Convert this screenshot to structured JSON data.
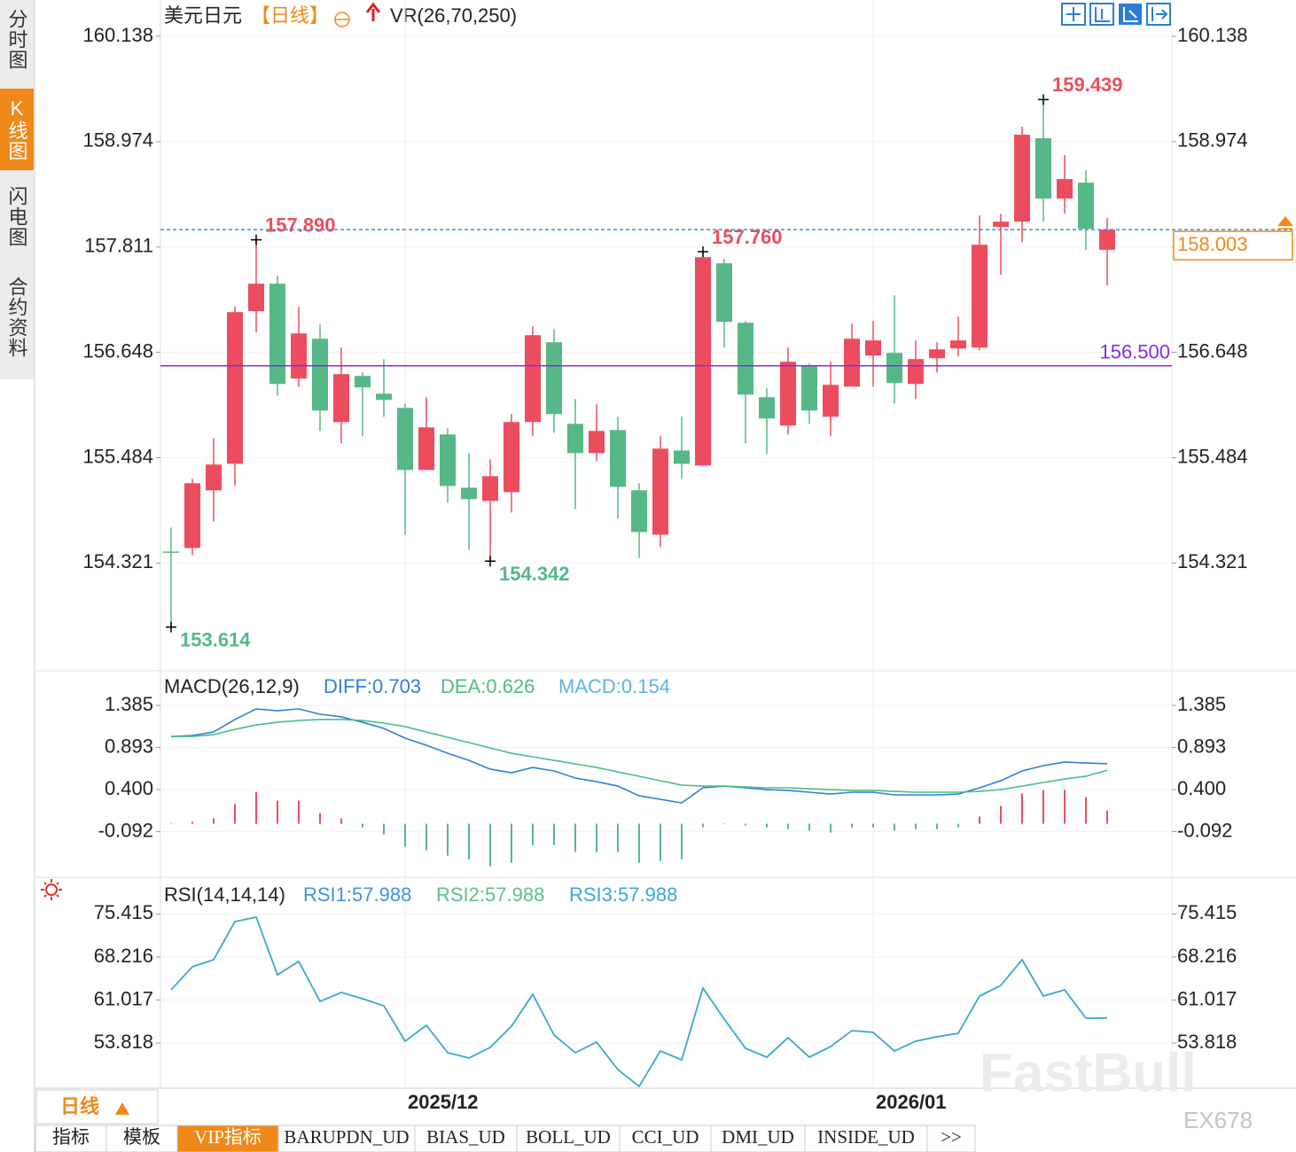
{
  "sidebar_tabs": [
    "分时图",
    "K线图",
    "闪电图",
    "合约资料"
  ],
  "active_sidebar_tab": 1,
  "header": {
    "symbol": "美元日元",
    "period": "【日线】",
    "indicator": "VR(26,70,250)"
  },
  "chart_data": [
    {
      "type": "candlestick",
      "categories": [
        null,
        null,
        null,
        null,
        null,
        null,
        null,
        null,
        null,
        null,
        null,
        "2025/12",
        null,
        null,
        null,
        null,
        null,
        null,
        null,
        null,
        null,
        null,
        null,
        null,
        null,
        null,
        null,
        null,
        null,
        null,
        null,
        null,
        null,
        "2026/01",
        null,
        null,
        null,
        null,
        null,
        null,
        null,
        null,
        null,
        null,
        null
      ],
      "open": [
        154.448,
        154.487,
        155.124,
        155.417,
        157.102,
        157.406,
        156.358,
        156.798,
        155.878,
        156.387,
        156.191,
        156.034,
        155.349,
        155.741,
        155.153,
        155.006,
        155.104,
        155.878,
        156.759,
        155.858,
        155.535,
        155.79,
        155.124,
        154.634,
        155.564,
        155.398,
        157.631,
        156.974,
        156.152,
        155.838,
        156.495,
        155.936,
        156.269,
        156.612,
        156.642,
        156.299,
        156.583,
        156.69,
        156.7,
        158.032,
        158.091,
        159.012,
        158.346,
        158.522,
        157.78
      ],
      "high": [
        154.712,
        155.251,
        155.701,
        157.151,
        157.89,
        157.494,
        157.151,
        156.955,
        156.7,
        156.426,
        156.573,
        156.083,
        156.152,
        155.809,
        155.535,
        155.466,
        155.966,
        156.935,
        156.906,
        156.132,
        156.074,
        155.936,
        155.202,
        155.721,
        155.936,
        157.76,
        157.68,
        156.994,
        156.25,
        156.7,
        156.524,
        156.544,
        156.965,
        156.994,
        157.278,
        156.779,
        156.759,
        157.043,
        158.16,
        158.179,
        159.139,
        159.439,
        158.826,
        158.659,
        158.13
      ],
      "low": [
        153.614,
        154.408,
        154.781,
        155.172,
        156.867,
        156.171,
        156.269,
        155.78,
        155.643,
        155.721,
        155.936,
        154.634,
        155.349,
        154.986,
        154.467,
        154.342,
        154.879,
        155.721,
        155.76,
        154.918,
        155.447,
        154.81,
        154.379,
        154.497,
        155.251,
        155.398,
        156.7,
        155.643,
        155.525,
        155.741,
        155.858,
        155.721,
        156.269,
        156.269,
        156.083,
        156.132,
        156.426,
        156.602,
        156.671,
        157.504,
        157.866,
        158.091,
        158.179,
        157.778,
        157.386
      ],
      "close": [
        154.448,
        155.202,
        155.408,
        157.092,
        157.406,
        156.299,
        156.857,
        156.005,
        156.407,
        156.26,
        156.122,
        155.349,
        155.819,
        155.172,
        155.026,
        155.28,
        155.878,
        156.837,
        155.966,
        155.535,
        155.78,
        155.163,
        154.663,
        155.584,
        155.417,
        157.699,
        156.984,
        156.181,
        155.917,
        156.544,
        156.005,
        156.289,
        156.798,
        156.779,
        156.309,
        156.573,
        156.681,
        156.779,
        157.836,
        158.091,
        159.051,
        158.346,
        158.561,
        158.013,
        158.003
      ],
      "up_color": "#ec4d5e",
      "down_color": "#55b886",
      "ylim": [
        153.15,
        160.49
      ],
      "yticks": [
        160.138,
        158.974,
        157.811,
        156.648,
        155.484,
        154.321
      ],
      "grid": true,
      "annotations": [
        {
          "index": 4,
          "value": 157.89,
          "label": "157.890",
          "color": "#ec4d5e"
        },
        {
          "index": 25,
          "value": 157.76,
          "label": "157.760",
          "color": "#ec4d5e"
        },
        {
          "index": 41,
          "value": 159.439,
          "label": "159.439",
          "color": "#ec4d5e"
        },
        {
          "index": 15,
          "value": 154.342,
          "label": "154.342",
          "color": "#55b886"
        },
        {
          "index": 0,
          "value": 153.614,
          "label": "153.614",
          "color": "#55b886"
        }
      ],
      "last_price": {
        "value": 158.003,
        "label": "158.003",
        "color": "#f0891a",
        "line_color": "#3d8fd6"
      },
      "level_line": {
        "value": 156.5,
        "label": "156.500",
        "color": "#8a2be2"
      }
    },
    {
      "type": "macd",
      "title": "MACD(26,12,9)",
      "ylim": [
        -0.606,
        1.759
      ],
      "yticks": [
        1.385,
        0.893,
        {
          "value": 0.4,
          "label": "0.400"
        },
        -0.092
      ],
      "grid": true,
      "series": [
        {
          "name": "DIFF",
          "legend": "DIFF:0.703",
          "type": "line",
          "color": "#2f7fd8",
          "values": [
            1.022,
            1.033,
            1.074,
            1.22,
            1.344,
            1.323,
            1.344,
            1.282,
            1.251,
            1.188,
            1.116,
            1.002,
            0.919,
            0.825,
            0.742,
            0.639,
            0.597,
            0.659,
            0.618,
            0.535,
            0.493,
            0.441,
            0.327,
            0.286,
            0.244,
            0.421,
            0.441,
            0.421,
            0.4,
            0.39,
            0.369,
            0.348,
            0.369,
            0.369,
            0.338,
            0.338,
            0.338,
            0.348,
            0.421,
            0.504,
            0.618,
            0.68,
            0.722,
            0.711,
            0.703
          ]
        },
        {
          "name": "DEA",
          "legend": "DEA:0.626",
          "type": "line",
          "color": "#4cbf7f",
          "values": [
            1.022,
            1.022,
            1.043,
            1.105,
            1.157,
            1.188,
            1.209,
            1.22,
            1.22,
            1.209,
            1.178,
            1.137,
            1.074,
            1.012,
            0.95,
            0.888,
            0.825,
            0.784,
            0.742,
            0.701,
            0.659,
            0.607,
            0.556,
            0.504,
            0.452,
            0.441,
            0.441,
            0.431,
            0.421,
            0.421,
            0.41,
            0.4,
            0.39,
            0.39,
            0.379,
            0.369,
            0.369,
            0.369,
            0.379,
            0.4,
            0.441,
            0.483,
            0.524,
            0.556,
            0.626
          ]
        },
        {
          "name": "MACD",
          "legend": "MACD:0.154",
          "type": "bar",
          "color": "#5ab4e8",
          "up_color": "#ec4d5e",
          "down_color": "#55b886",
          "values": [
            0,
            0.022,
            0.062,
            0.23,
            0.374,
            0.27,
            0.27,
            0.124,
            0.062,
            -0.042,
            -0.124,
            -0.27,
            -0.31,
            -0.374,
            -0.416,
            -0.498,
            -0.456,
            -0.25,
            -0.248,
            -0.332,
            -0.332,
            -0.332,
            -0.458,
            -0.436,
            -0.416,
            -0.04,
            0,
            -0.02,
            -0.042,
            -0.062,
            -0.082,
            -0.104,
            -0.042,
            -0.042,
            -0.082,
            -0.062,
            -0.062,
            -0.042,
            0.084,
            0.208,
            0.354,
            0.394,
            0.396,
            0.31,
            0.154
          ]
        }
      ]
    },
    {
      "type": "rsi",
      "title": "RSI(14,14,14)",
      "ylim": [
        46.25,
        80.82
      ],
      "yticks": [
        75.415,
        68.216,
        61.017,
        53.818
      ],
      "grid": true,
      "series": [
        {
          "name": "RSI1",
          "legend": "RSI1:57.988",
          "type": "line",
          "color": "#3f93e0",
          "values": [
            62.72,
            66.58,
            67.76,
            74.14,
            74.89,
            65.24,
            67.47,
            60.79,
            62.28,
            61.24,
            60.05,
            54.12,
            56.79,
            52.19,
            51.3,
            53.08,
            56.64,
            61.98,
            55.15,
            52.19,
            53.97,
            49.37,
            46.55,
            52.48,
            50.99,
            63.02,
            57.82,
            52.93,
            51.44,
            54.71,
            51.44,
            53.22,
            55.89,
            55.6,
            52.48,
            54.12,
            54.86,
            55.45,
            61.68,
            63.46,
            67.76,
            61.68,
            62.72,
            57.97,
            57.988
          ]
        },
        {
          "name": "RSI2",
          "legend": "RSI2:57.988",
          "type": "line",
          "color": "#5fc08a",
          "values": [
            62.72,
            66.58,
            67.76,
            74.14,
            74.89,
            65.24,
            67.47,
            60.79,
            62.28,
            61.24,
            60.05,
            54.12,
            56.79,
            52.19,
            51.3,
            53.08,
            56.64,
            61.98,
            55.15,
            52.19,
            53.97,
            49.37,
            46.55,
            52.48,
            50.99,
            63.02,
            57.82,
            52.93,
            51.44,
            54.71,
            51.44,
            53.22,
            55.89,
            55.6,
            52.48,
            54.12,
            54.86,
            55.45,
            61.68,
            63.46,
            67.76,
            61.68,
            62.72,
            57.97,
            57.988
          ]
        },
        {
          "name": "RSI3",
          "legend": "RSI3:57.988",
          "type": "line",
          "color": "#3aa8d8",
          "values": [
            62.72,
            66.58,
            67.76,
            74.14,
            74.89,
            65.24,
            67.47,
            60.79,
            62.28,
            61.24,
            60.05,
            54.12,
            56.79,
            52.19,
            51.3,
            53.08,
            56.64,
            61.98,
            55.15,
            52.19,
            53.97,
            49.37,
            46.55,
            52.48,
            50.99,
            63.02,
            57.82,
            52.93,
            51.44,
            54.71,
            51.44,
            53.22,
            55.89,
            55.6,
            52.48,
            54.12,
            54.86,
            55.45,
            61.68,
            63.46,
            67.76,
            61.68,
            62.72,
            57.97,
            57.988
          ]
        }
      ]
    }
  ],
  "period_button": "日线",
  "tabs": [
    "指标",
    "模板",
    "VIP指标",
    "BARUPDN_UD",
    "BIAS_UD",
    "BOLL_UD",
    "CCI_UD",
    "DMI_UD",
    "INSIDE_UD",
    ">>"
  ],
  "active_tab": 2,
  "watermark": [
    "FastBull",
    "EX678"
  ]
}
